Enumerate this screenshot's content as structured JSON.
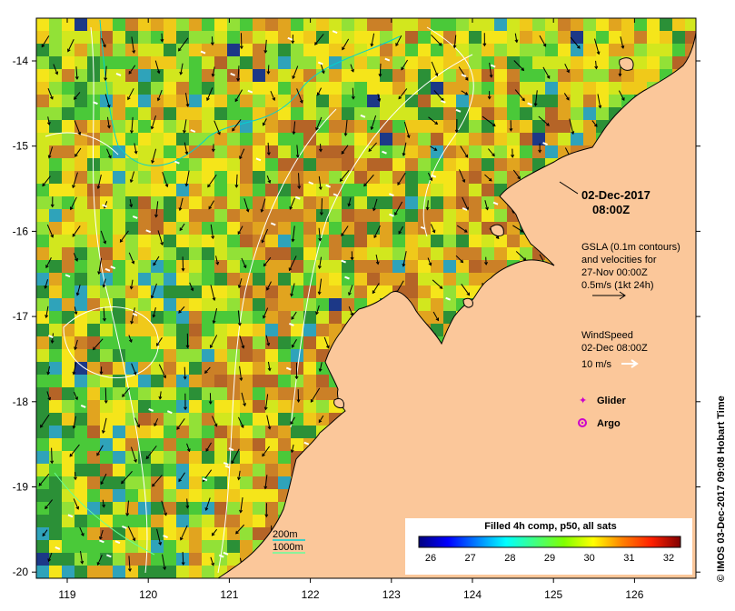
{
  "map": {
    "colors": {
      "land": "#fbc79a",
      "coast": "#000000",
      "contour": "#ffffff",
      "vector_arrow": "#000000",
      "wind_arrow": "#ffffff",
      "isobath_200": "#00d2d2",
      "isobath_1000": "#66ff99",
      "glider": "#cc00cc",
      "argo": "#cc00cc"
    },
    "x_ticks": [
      "119",
      "120",
      "121",
      "122",
      "123",
      "124",
      "125",
      "126"
    ],
    "y_ticks": [
      "-14",
      "-15",
      "-16",
      "-17",
      "-18",
      "-19",
      "-20"
    ]
  },
  "annotations": {
    "date": "02-Dec-2017",
    "time": "08:00Z",
    "gsla_line1": "GSLA (0.1m contours)",
    "gsla_line2": "and velocities for",
    "gsla_line3": "27-Nov 00:00Z",
    "gsla_line4": "0.5m/s (1kt 24h)",
    "wind_title": "WindSpeed",
    "wind_time": "02-Dec 08:00Z",
    "wind_scale": "10 m/s",
    "glider": "Glider",
    "argo": "Argo",
    "isobath_200": "200m",
    "isobath_1000": "1000m"
  },
  "colorbar": {
    "title": "Filled 4h comp, p50, all sats",
    "labels": [
      "26",
      "27",
      "28",
      "29",
      "30",
      "31",
      "32"
    ],
    "colors": [
      "#00007f",
      "#0000ff",
      "#0080ff",
      "#00ffff",
      "#40ff80",
      "#80ff00",
      "#ffff00",
      "#ff8000",
      "#ff2000",
      "#800000"
    ]
  },
  "credit": "© IMOS 03-Dec-2017 09:08 Hobart Time"
}
